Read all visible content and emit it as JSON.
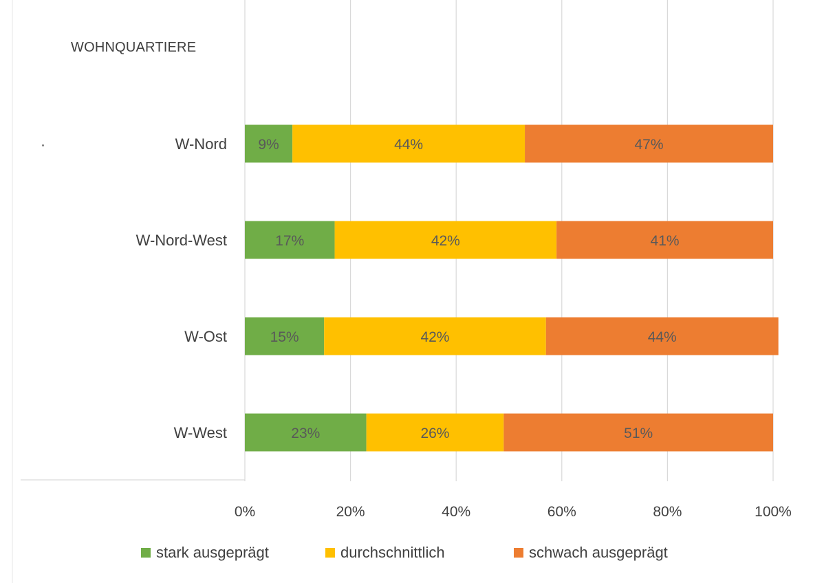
{
  "chart_data": {
    "type": "bar",
    "orientation": "horizontal",
    "stacked": "percent",
    "group_title": "WOHNQUARTIERE",
    "categories": [
      "W-Nord",
      "W-Nord-West",
      "W-Ost",
      "W-West"
    ],
    "series": [
      {
        "name": "stark ausgeprägt",
        "color": "#70ad47",
        "values": [
          9,
          17,
          15,
          23
        ]
      },
      {
        "name": "durchschnittlich",
        "color": "#ffc000",
        "values": [
          44,
          42,
          42,
          26
        ]
      },
      {
        "name": "schwach ausgeprägt",
        "color": "#ed7d31",
        "values": [
          47,
          41,
          44,
          51
        ]
      }
    ],
    "data_labels": [
      [
        "9%",
        "17%",
        "15%",
        "23%"
      ],
      [
        "44%",
        "42%",
        "42%",
        "26%"
      ],
      [
        "47%",
        "41%",
        "44%",
        "51%"
      ]
    ],
    "xlim": [
      0,
      100
    ],
    "xticks": [
      0,
      20,
      40,
      60,
      80,
      100
    ],
    "xtick_labels": [
      "0%",
      "20%",
      "40%",
      "60%",
      "80%",
      "100%"
    ],
    "grid": true,
    "legend_position": "bottom",
    "label_color": "#595959",
    "grid_color": "#d9d9d9"
  }
}
